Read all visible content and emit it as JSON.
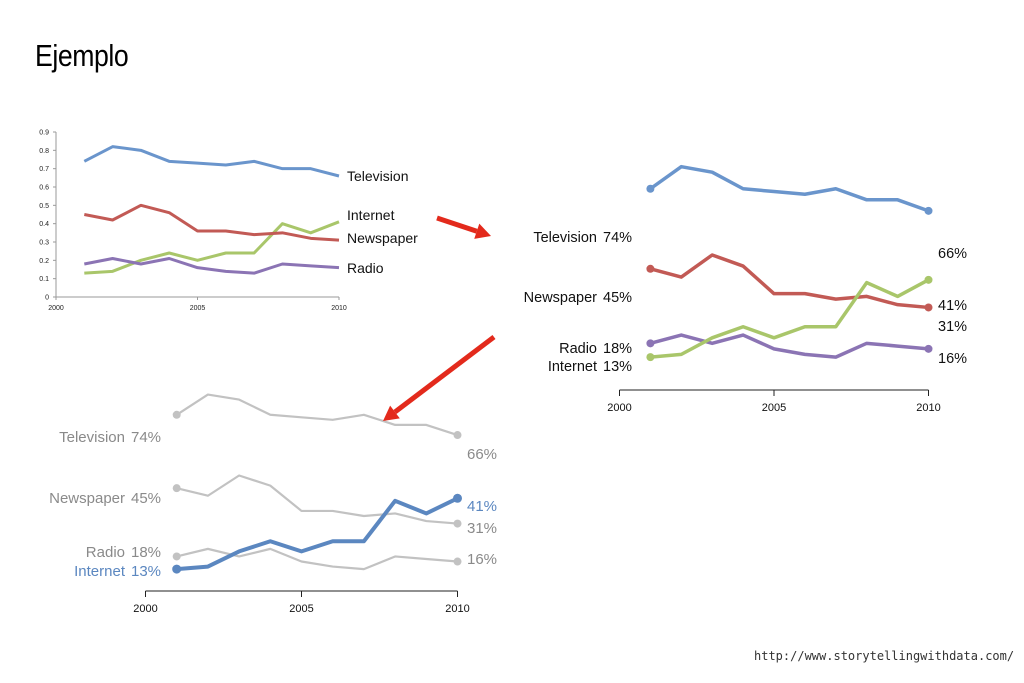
{
  "title": "Ejemplo",
  "source": "http://www.storytellingwithdata.com/",
  "colors": {
    "television": "#6a95cc",
    "internet": "#a9c66a",
    "newspaper": "#c25a55",
    "radio": "#8b74b4",
    "muted": "#c2c2c2",
    "muted_text": "#8a8a8a",
    "highlight": "#5b87c0",
    "arrow": "#e32a1c"
  },
  "chart_data": [
    {
      "type": "line",
      "x": [
        2001,
        2002,
        2003,
        2004,
        2005,
        2006,
        2007,
        2008,
        2009,
        2010
      ],
      "xticks": [
        "2000",
        "2005",
        "2010"
      ],
      "yticks": [
        "0",
        "0.1",
        "0.2",
        "0.3",
        "0.4",
        "0.5",
        "0.6",
        "0.7",
        "0.8",
        "0.9"
      ],
      "ylim": [
        0,
        0.9
      ],
      "grid": false,
      "legend": "line-end labels",
      "series": [
        {
          "name": "Television",
          "values": [
            0.74,
            0.82,
            0.8,
            0.74,
            0.73,
            0.72,
            0.74,
            0.7,
            0.7,
            0.66
          ]
        },
        {
          "name": "Internet",
          "values": [
            0.13,
            0.14,
            0.2,
            0.24,
            0.2,
            0.24,
            0.24,
            0.4,
            0.35,
            0.41
          ]
        },
        {
          "name": "Newspaper",
          "values": [
            0.45,
            0.42,
            0.5,
            0.46,
            0.36,
            0.36,
            0.34,
            0.35,
            0.32,
            0.31
          ]
        },
        {
          "name": "Radio",
          "values": [
            0.18,
            0.21,
            0.18,
            0.21,
            0.16,
            0.14,
            0.13,
            0.18,
            0.17,
            0.16
          ]
        }
      ]
    },
    {
      "type": "line",
      "x": [
        2001,
        2002,
        2003,
        2004,
        2005,
        2006,
        2007,
        2008,
        2009,
        2010
      ],
      "xticks": [
        "2000",
        "2005",
        "2010"
      ],
      "grid": false,
      "legend": "direct labels",
      "series": [
        {
          "name": "Television",
          "start_label": "74%",
          "end_label": "66%",
          "values": [
            0.74,
            0.82,
            0.8,
            0.74,
            0.73,
            0.72,
            0.74,
            0.7,
            0.7,
            0.66
          ]
        },
        {
          "name": "Newspaper",
          "start_label": "45%",
          "end_label": "31%",
          "values": [
            0.45,
            0.42,
            0.5,
            0.46,
            0.36,
            0.36,
            0.34,
            0.35,
            0.32,
            0.31
          ]
        },
        {
          "name": "Radio",
          "start_label": "18%",
          "end_label": "16%",
          "values": [
            0.18,
            0.21,
            0.18,
            0.21,
            0.16,
            0.14,
            0.13,
            0.18,
            0.17,
            0.16
          ]
        },
        {
          "name": "Internet",
          "start_label": "13%",
          "end_label": "41%",
          "values": [
            0.13,
            0.14,
            0.2,
            0.24,
            0.2,
            0.24,
            0.24,
            0.4,
            0.35,
            0.41
          ]
        }
      ]
    },
    {
      "type": "line",
      "x": [
        2001,
        2002,
        2003,
        2004,
        2005,
        2006,
        2007,
        2008,
        2009,
        2010
      ],
      "xticks": [
        "2000",
        "2005",
        "2010"
      ],
      "grid": false,
      "legend": "direct labels",
      "highlight": "Internet",
      "series": [
        {
          "name": "Television",
          "start_label": "74%",
          "end_label": "66%",
          "values": [
            0.74,
            0.82,
            0.8,
            0.74,
            0.73,
            0.72,
            0.74,
            0.7,
            0.7,
            0.66
          ]
        },
        {
          "name": "Newspaper",
          "start_label": "45%",
          "end_label": "31%",
          "values": [
            0.45,
            0.42,
            0.5,
            0.46,
            0.36,
            0.36,
            0.34,
            0.35,
            0.32,
            0.31
          ]
        },
        {
          "name": "Radio",
          "start_label": "18%",
          "end_label": "16%",
          "values": [
            0.18,
            0.21,
            0.18,
            0.21,
            0.16,
            0.14,
            0.13,
            0.18,
            0.17,
            0.16
          ]
        },
        {
          "name": "Internet",
          "start_label": "13%",
          "end_label": "41%",
          "values": [
            0.13,
            0.14,
            0.2,
            0.24,
            0.2,
            0.24,
            0.24,
            0.4,
            0.35,
            0.41
          ]
        }
      ]
    }
  ]
}
